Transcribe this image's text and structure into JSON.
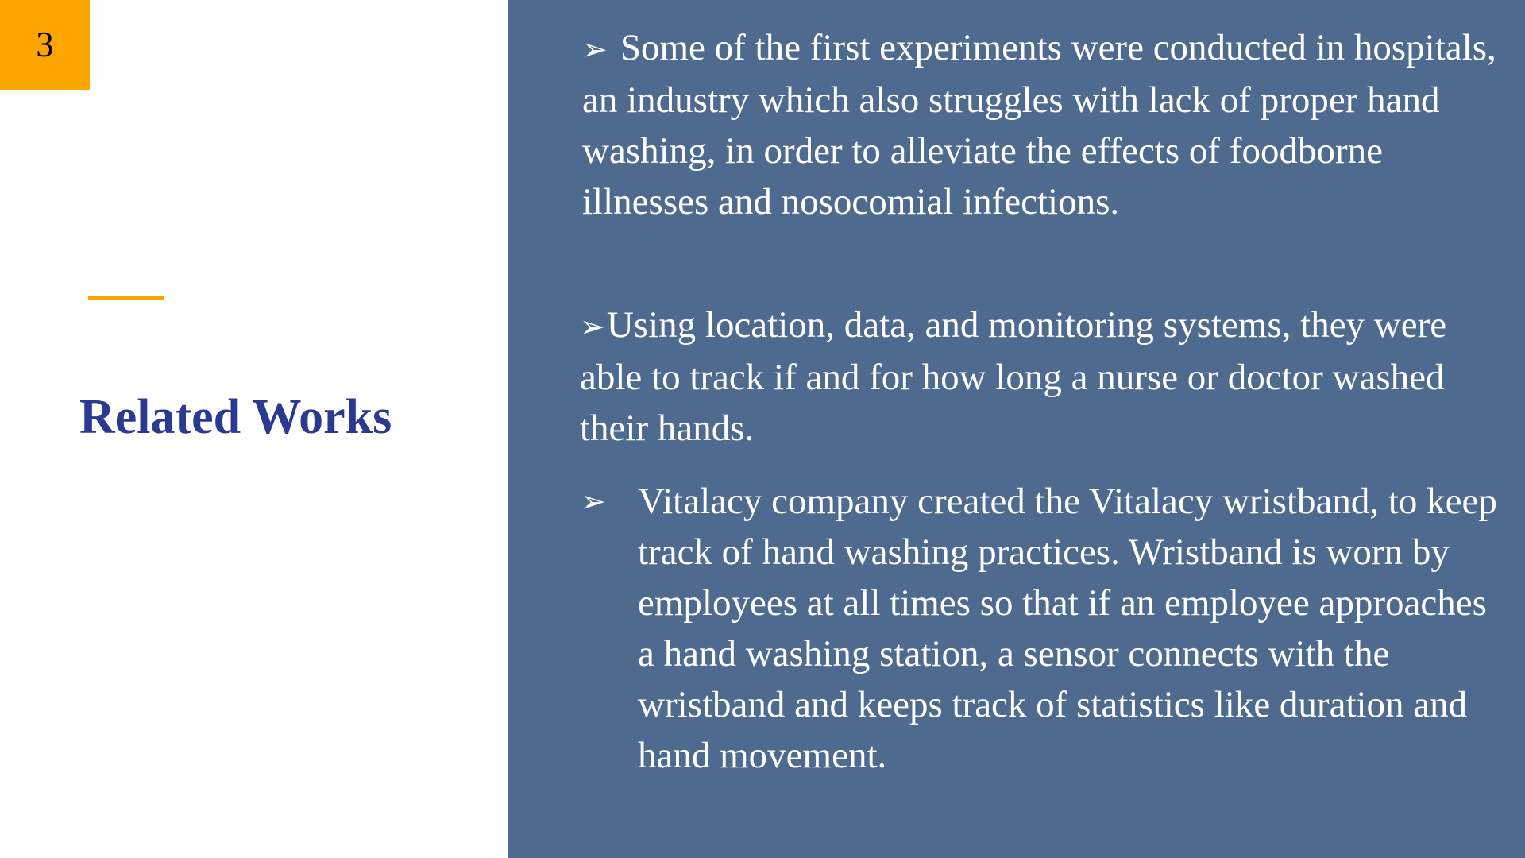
{
  "slide": {
    "page_number": "3",
    "title": "Related Works",
    "colors": {
      "accent": "#FFA500",
      "title": "#2B3990",
      "panel": "#4F6A8F",
      "panel_text": "#FFFFFF"
    },
    "bullet_icon": "arrowhead-bullet-icon",
    "bullets": [
      {
        "marker": "➢",
        "text": "Some of the first experiments were conducted in hospitals, an industry which also struggles with lack of proper hand washing, in order to alleviate the effects of foodborne illnesses and nosocomial infections."
      },
      {
        "marker": "➢",
        "text": "Using location, data, and monitoring systems, they were able to track if and for how long a nurse or doctor washed their hands."
      },
      {
        "marker": "➢",
        "text": "Vitalacy company created the Vitalacy wristband, to keep track of hand washing practices. Wristband is worn by employees at all times so that if an employee approaches a hand washing station, a sensor connects with the wristband and keeps track of statistics like duration and hand movement."
      }
    ]
  }
}
